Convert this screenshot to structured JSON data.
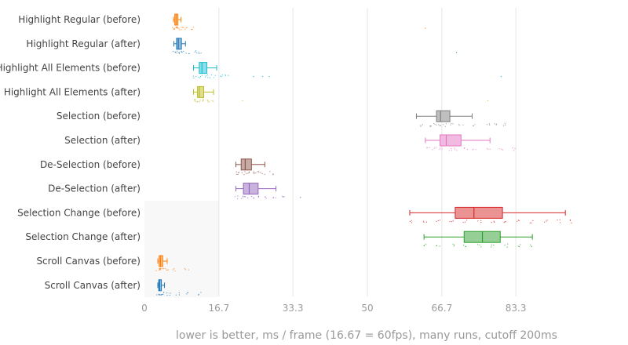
{
  "chart_data": {
    "type": "box",
    "orientation": "horizontal",
    "xlabel": "lower is better, ms / frame (16.67 = 60fps), many runs, cutoff 200ms",
    "xlim": [
      0,
      100
    ],
    "xticks": [
      {
        "value": 0,
        "label": "0"
      },
      {
        "value": 16.7,
        "label": "16.7"
      },
      {
        "value": 33.3,
        "label": "33.3"
      },
      {
        "value": 50,
        "label": "50"
      },
      {
        "value": 66.7,
        "label": "66.7"
      },
      {
        "value": 83.3,
        "label": "83.3"
      }
    ],
    "shaded_band": {
      "xmin": 0,
      "xmax": 16.7,
      "rows": [
        "Selection Change (before)",
        "Scroll Canvas (after)"
      ],
      "color": "#f8f8f8"
    },
    "series": [
      {
        "name": "Highlight Regular (before)",
        "color": "#ff7f0e",
        "fill": "#ffbf87",
        "whisker_low": 6.5,
        "q1": 6.8,
        "median": 7.1,
        "q3": 7.5,
        "whisker_high": 8.2,
        "points": [
          6.7,
          7.0,
          7.2,
          7.4,
          7.8,
          8.6,
          9.5,
          11.0
        ],
        "outliers": [
          63.0
        ]
      },
      {
        "name": "Highlight Regular (after)",
        "color": "#1f77b4",
        "fill": "#8fbbd9",
        "whisker_low": 6.6,
        "q1": 7.2,
        "median": 7.6,
        "q3": 8.3,
        "whisker_high": 9.2,
        "points": [
          6.8,
          7.4,
          7.9,
          8.5,
          9.6,
          11.5,
          12.5
        ],
        "outliers": [
          70.0
        ]
      },
      {
        "name": "Highlight All Elements (before)",
        "color": "#17becf",
        "fill": "#8bdee7",
        "whisker_low": 11.0,
        "q1": 12.3,
        "median": 12.9,
        "q3": 14.0,
        "whisker_high": 16.2,
        "points": [
          11.5,
          12.5,
          13.4,
          14.5,
          15.5,
          17.5,
          18.5
        ],
        "outliers": [
          24.5,
          26.5,
          28.0,
          80.0
        ]
      },
      {
        "name": "Highlight All Elements (after)",
        "color": "#bcbd22",
        "fill": "#dede91",
        "whisker_low": 11.0,
        "q1": 11.9,
        "median": 12.3,
        "q3": 13.3,
        "whisker_high": 15.5,
        "points": [
          11.3,
          12.0,
          12.8,
          13.6,
          14.2,
          15.0
        ],
        "outliers": [
          22.0,
          77.0
        ]
      },
      {
        "name": "Selection (before)",
        "color": "#7f7f7f",
        "fill": "#bfbfbf",
        "whisker_low": 61.0,
        "q1": 65.5,
        "median": 66.4,
        "q3": 68.5,
        "whisker_high": 73.5,
        "points": [
          62.0,
          64.0,
          65.0,
          66.0,
          67.5,
          69.0,
          71.0,
          74.0,
          77.0,
          79.0,
          81.0
        ],
        "outliers": []
      },
      {
        "name": "Selection (after)",
        "color": "#e377c2",
        "fill": "#f1bbe1",
        "whisker_low": 63.0,
        "q1": 66.3,
        "median": 67.7,
        "q3": 71.0,
        "whisker_high": 77.5,
        "points": [
          63.5,
          65.0,
          66.5,
          68.5,
          70.0,
          72.0,
          74.0,
          77.0,
          80.0,
          83.0
        ],
        "outliers": []
      },
      {
        "name": "De-Selection (before)",
        "color": "#8c564b",
        "fill": "#c6aba5",
        "whisker_low": 20.5,
        "q1": 21.7,
        "median": 22.6,
        "q3": 24.0,
        "whisker_high": 27.0,
        "points": [
          20.7,
          21.5,
          22.5,
          23.5,
          24.5,
          25.5,
          26.5,
          28.5
        ],
        "outliers": []
      },
      {
        "name": "De-Selection (after)",
        "color": "#9467bd",
        "fill": "#c9b3de",
        "whisker_low": 20.5,
        "q1": 22.2,
        "median": 23.5,
        "q3": 25.5,
        "whisker_high": 29.5,
        "points": [
          20.8,
          22.0,
          23.0,
          24.5,
          26.0,
          27.5,
          29.0,
          31.0
        ],
        "outliers": [
          35.0
        ]
      },
      {
        "name": "Selection Change (before)",
        "color": "#d62728",
        "fill": "#eb9393",
        "whisker_low": 59.5,
        "q1": 69.7,
        "median": 73.9,
        "q3": 80.3,
        "whisker_high": 94.4,
        "points": [
          60.0,
          63.0,
          66.0,
          69.0,
          72.0,
          75.0,
          78.0,
          81.0,
          84.0,
          87.0,
          90.0,
          93.0,
          96.0
        ],
        "outliers": []
      },
      {
        "name": "Selection Change (after)",
        "color": "#2ca02c",
        "fill": "#95cf95",
        "whisker_low": 62.7,
        "q1": 71.7,
        "median": 75.8,
        "q3": 79.8,
        "whisker_high": 87.0,
        "points": [
          63.0,
          66.0,
          69.0,
          72.0,
          75.0,
          78.0,
          81.0,
          84.0,
          86.5
        ],
        "outliers": []
      },
      {
        "name": "Scroll Canvas (before)",
        "color": "#ff7f0e",
        "fill": "#ffbf87",
        "whisker_low": 3.0,
        "q1": 3.3,
        "median": 3.6,
        "q3": 4.1,
        "whisker_high": 5.1,
        "points": [
          3.1,
          3.5,
          3.9,
          4.5,
          5.5,
          6.5,
          9.5
        ],
        "outliers": []
      },
      {
        "name": "Scroll Canvas (after)",
        "color": "#1f77b4",
        "fill": "#8fbbd9",
        "whisker_low": 3.0,
        "q1": 3.2,
        "median": 3.4,
        "q3": 3.8,
        "whisker_high": 4.5,
        "points": [
          3.1,
          3.4,
          3.8,
          4.6,
          5.5,
          7.5,
          9.5,
          12.5
        ],
        "outliers": []
      }
    ]
  }
}
